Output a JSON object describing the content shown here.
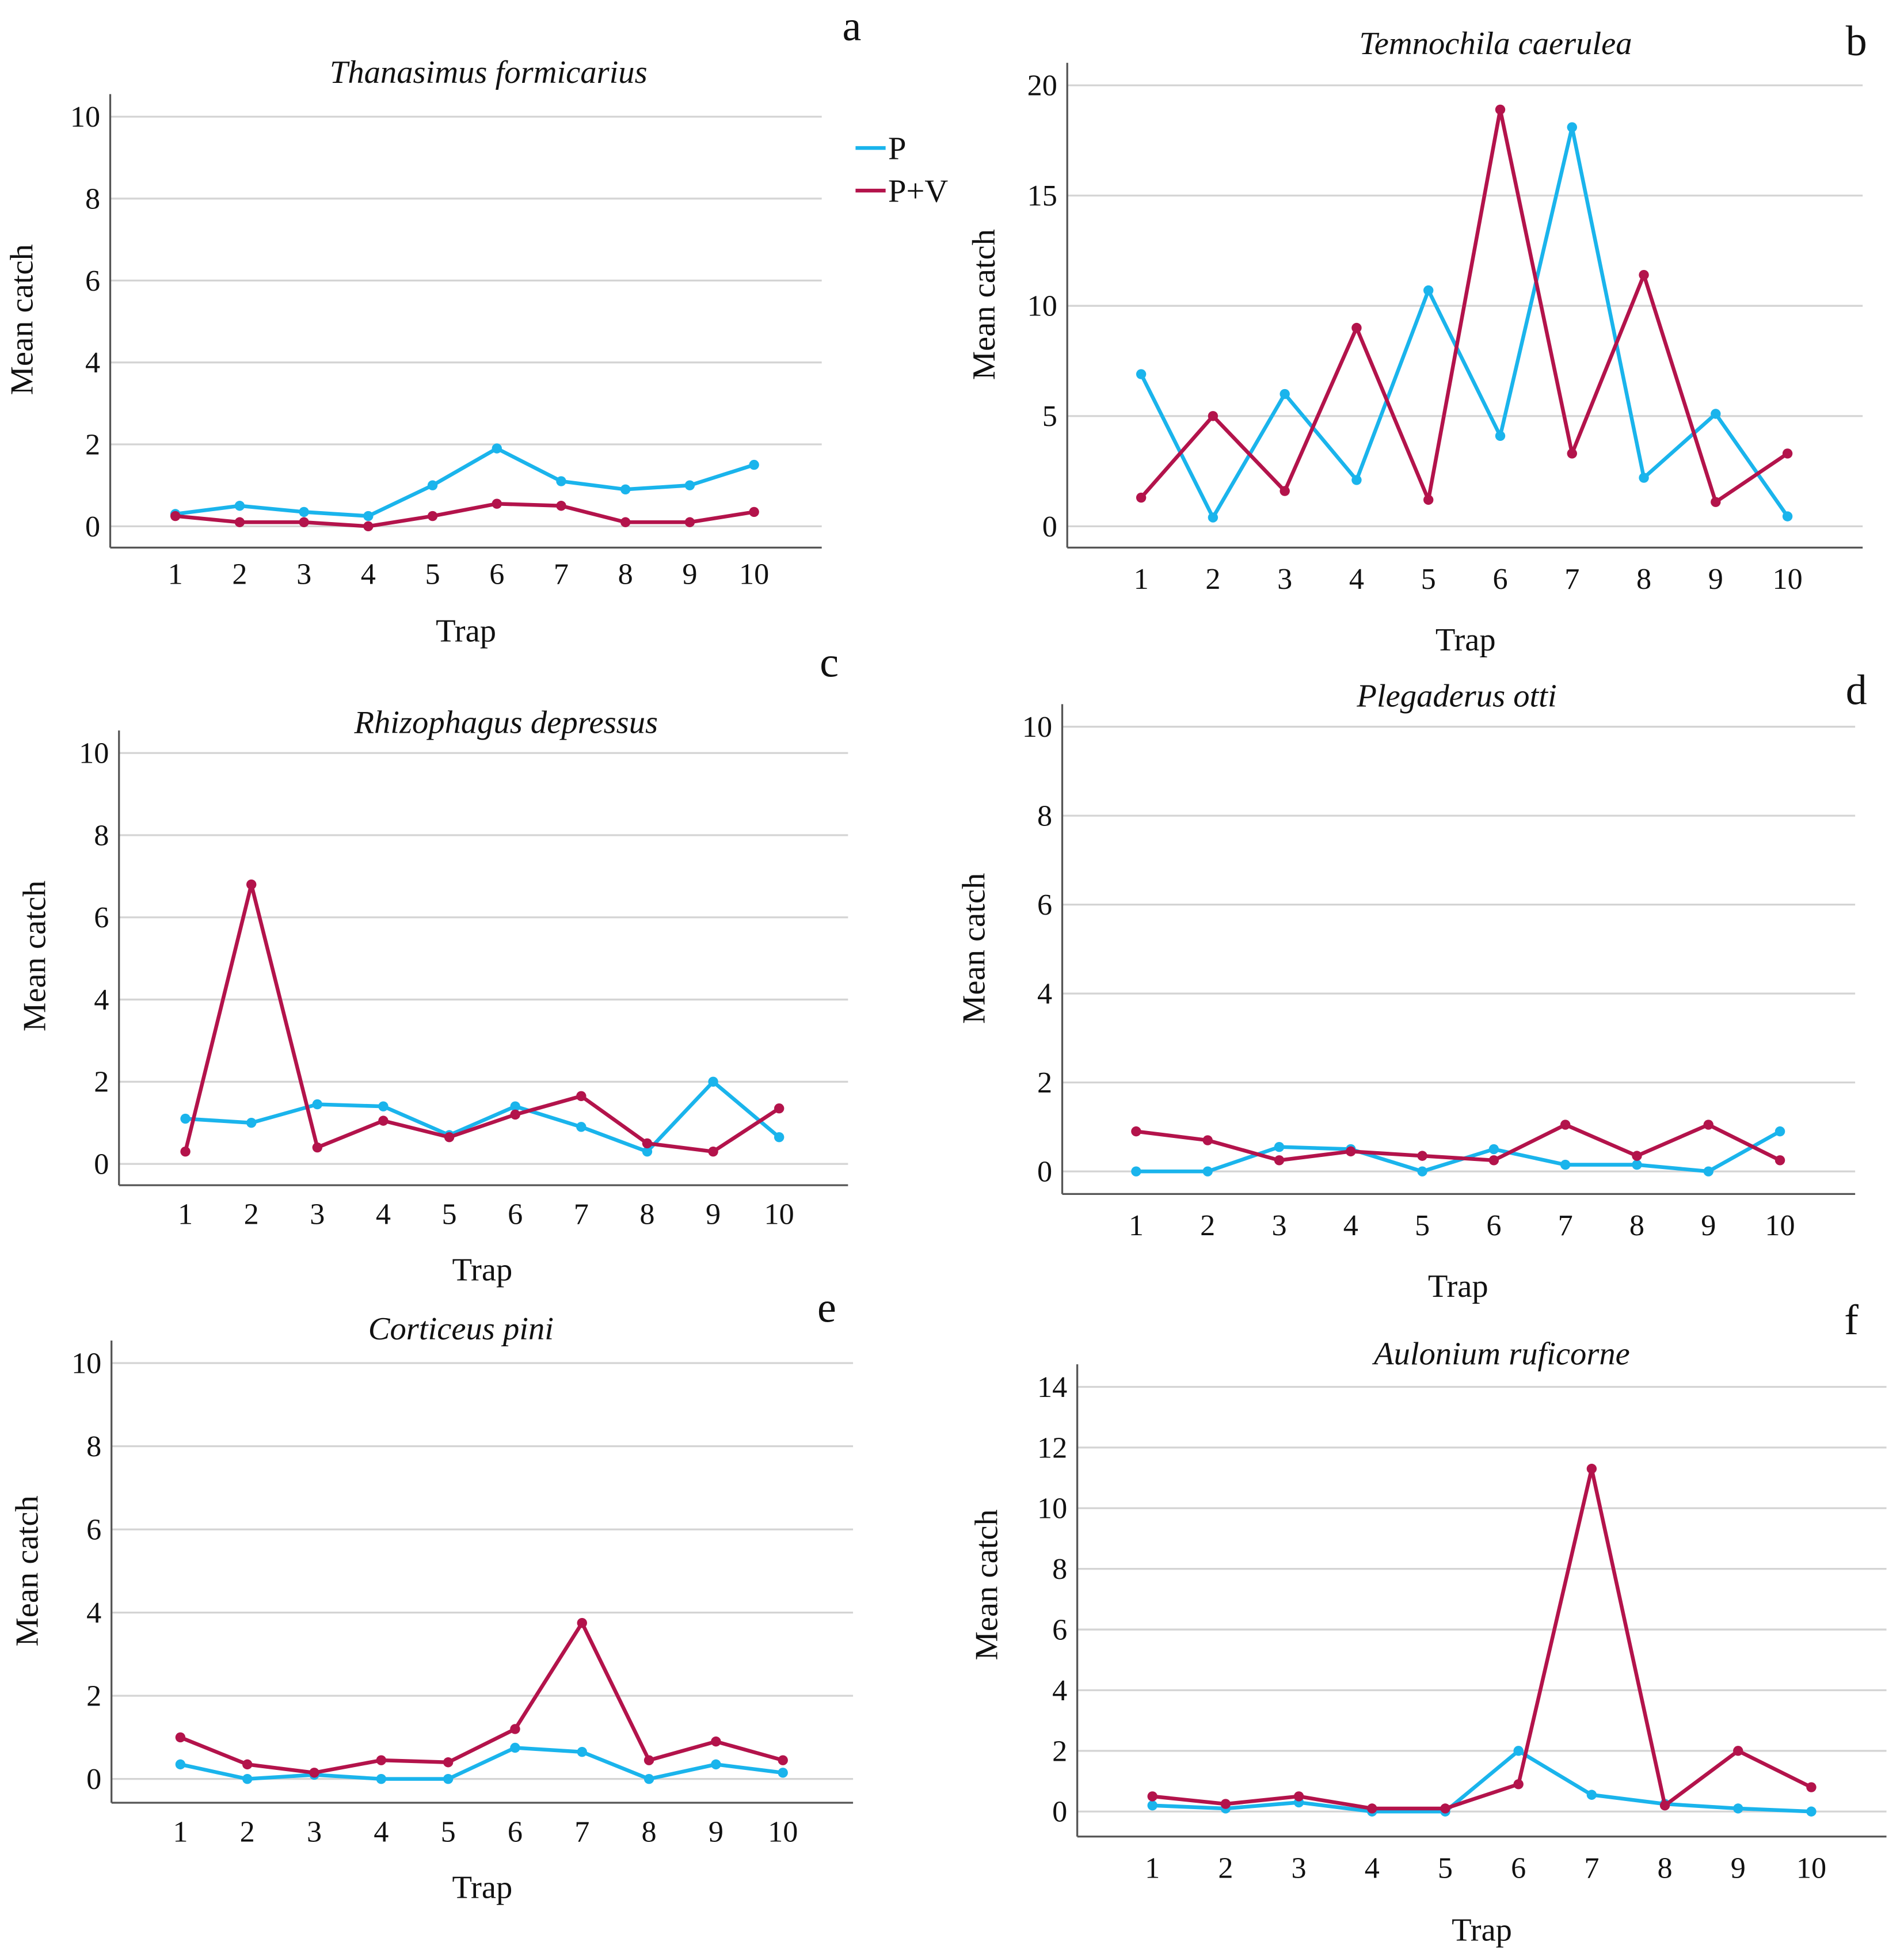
{
  "colors": {
    "P": "#1ab4ec",
    "P+V": "#b3134b",
    "grid": "#d4d4d4",
    "axis": "#555555"
  },
  "legend": {
    "items": [
      "P",
      "P+V"
    ],
    "placement": "between panels a and b"
  },
  "chart_data": [
    {
      "panel": "a",
      "type": "line",
      "title": "Thanasimus formicarius",
      "xlabel": "Trap",
      "ylabel": "Mean catch",
      "categories": [
        "1",
        "2",
        "3",
        "4",
        "5",
        "6",
        "7",
        "8",
        "9",
        "10"
      ],
      "ylim": [
        0,
        10
      ],
      "yticks": [
        0,
        2,
        4,
        6,
        8,
        10
      ],
      "grid": true,
      "series": [
        {
          "name": "P",
          "values": [
            0.3,
            0.5,
            0.35,
            0.25,
            1.0,
            1.9,
            1.1,
            0.9,
            1.0,
            1.5
          ]
        },
        {
          "name": "P+V",
          "values": [
            0.25,
            0.1,
            0.1,
            0.0,
            0.25,
            0.55,
            0.5,
            0.1,
            0.1,
            0.35
          ]
        }
      ]
    },
    {
      "panel": "b",
      "type": "line",
      "title": "Temnochila caerulea",
      "xlabel": "Trap",
      "ylabel": "Mean catch",
      "categories": [
        "1",
        "2",
        "3",
        "4",
        "5",
        "6",
        "7",
        "8",
        "9",
        "10"
      ],
      "ylim": [
        0,
        20
      ],
      "yticks": [
        0,
        5,
        10,
        15,
        20
      ],
      "grid": true,
      "series": [
        {
          "name": "P",
          "values": [
            6.9,
            0.4,
            6.0,
            2.1,
            10.7,
            4.1,
            18.1,
            2.2,
            5.1,
            0.45
          ]
        },
        {
          "name": "P+V",
          "values": [
            1.3,
            5.0,
            1.6,
            9.0,
            1.2,
            18.9,
            3.3,
            11.4,
            1.1,
            3.3
          ]
        }
      ]
    },
    {
      "panel": "c",
      "type": "line",
      "title": "Rhizophagus depressus",
      "xlabel": "Trap",
      "ylabel": "Mean catch",
      "categories": [
        "1",
        "2",
        "3",
        "4",
        "5",
        "6",
        "7",
        "8",
        "9",
        "10"
      ],
      "ylim": [
        0,
        10
      ],
      "yticks": [
        0,
        2,
        4,
        6,
        8,
        10
      ],
      "grid": true,
      "series": [
        {
          "name": "P",
          "values": [
            1.1,
            1.0,
            1.45,
            1.4,
            0.7,
            1.4,
            0.9,
            0.3,
            2.0,
            0.65
          ]
        },
        {
          "name": "P+V",
          "values": [
            0.3,
            6.8,
            0.4,
            1.05,
            0.65,
            1.2,
            1.65,
            0.5,
            0.3,
            1.35
          ]
        }
      ]
    },
    {
      "panel": "d",
      "type": "line",
      "title": "Plegaderus otti",
      "xlabel": "Trap",
      "ylabel": "Mean catch",
      "categories": [
        "1",
        "2",
        "3",
        "4",
        "5",
        "6",
        "7",
        "8",
        "9",
        "10"
      ],
      "ylim": [
        0,
        10
      ],
      "yticks": [
        0,
        2,
        4,
        6,
        8,
        10
      ],
      "grid": true,
      "series": [
        {
          "name": "P",
          "values": [
            0.0,
            0.0,
            0.55,
            0.5,
            0.0,
            0.5,
            0.15,
            0.15,
            0.0,
            0.9
          ]
        },
        {
          "name": "P+V",
          "values": [
            0.9,
            0.7,
            0.25,
            0.45,
            0.35,
            0.25,
            1.05,
            0.35,
            1.05,
            0.25
          ]
        }
      ]
    },
    {
      "panel": "e",
      "type": "line",
      "title": "Corticeus pini",
      "xlabel": "Trap",
      "ylabel": "Mean catch",
      "categories": [
        "1",
        "2",
        "3",
        "4",
        "5",
        "6",
        "7",
        "8",
        "9",
        "10"
      ],
      "ylim": [
        0,
        10
      ],
      "yticks": [
        0,
        2,
        4,
        6,
        8,
        10
      ],
      "grid": true,
      "series": [
        {
          "name": "P",
          "values": [
            0.35,
            0.0,
            0.1,
            0.0,
            0.0,
            0.75,
            0.65,
            0.0,
            0.35,
            0.15
          ]
        },
        {
          "name": "P+V",
          "values": [
            1.0,
            0.35,
            0.15,
            0.45,
            0.4,
            1.2,
            3.75,
            0.45,
            0.9,
            0.45
          ]
        }
      ]
    },
    {
      "panel": "f",
      "type": "line",
      "title": "Aulonium ruficorne",
      "xlabel": "Trap",
      "ylabel": "Mean catch",
      "categories": [
        "1",
        "2",
        "3",
        "4",
        "5",
        "6",
        "7",
        "8",
        "9",
        "10"
      ],
      "ylim": [
        0,
        14
      ],
      "yticks": [
        0,
        2,
        4,
        6,
        8,
        10,
        12,
        14
      ],
      "grid": true,
      "series": [
        {
          "name": "P",
          "values": [
            0.2,
            0.1,
            0.3,
            0.0,
            0.0,
            2.0,
            0.55,
            0.25,
            0.1,
            0.0
          ]
        },
        {
          "name": "P+V",
          "values": [
            0.5,
            0.25,
            0.5,
            0.1,
            0.1,
            0.9,
            11.3,
            0.2,
            2.0,
            0.8
          ]
        }
      ]
    }
  ]
}
